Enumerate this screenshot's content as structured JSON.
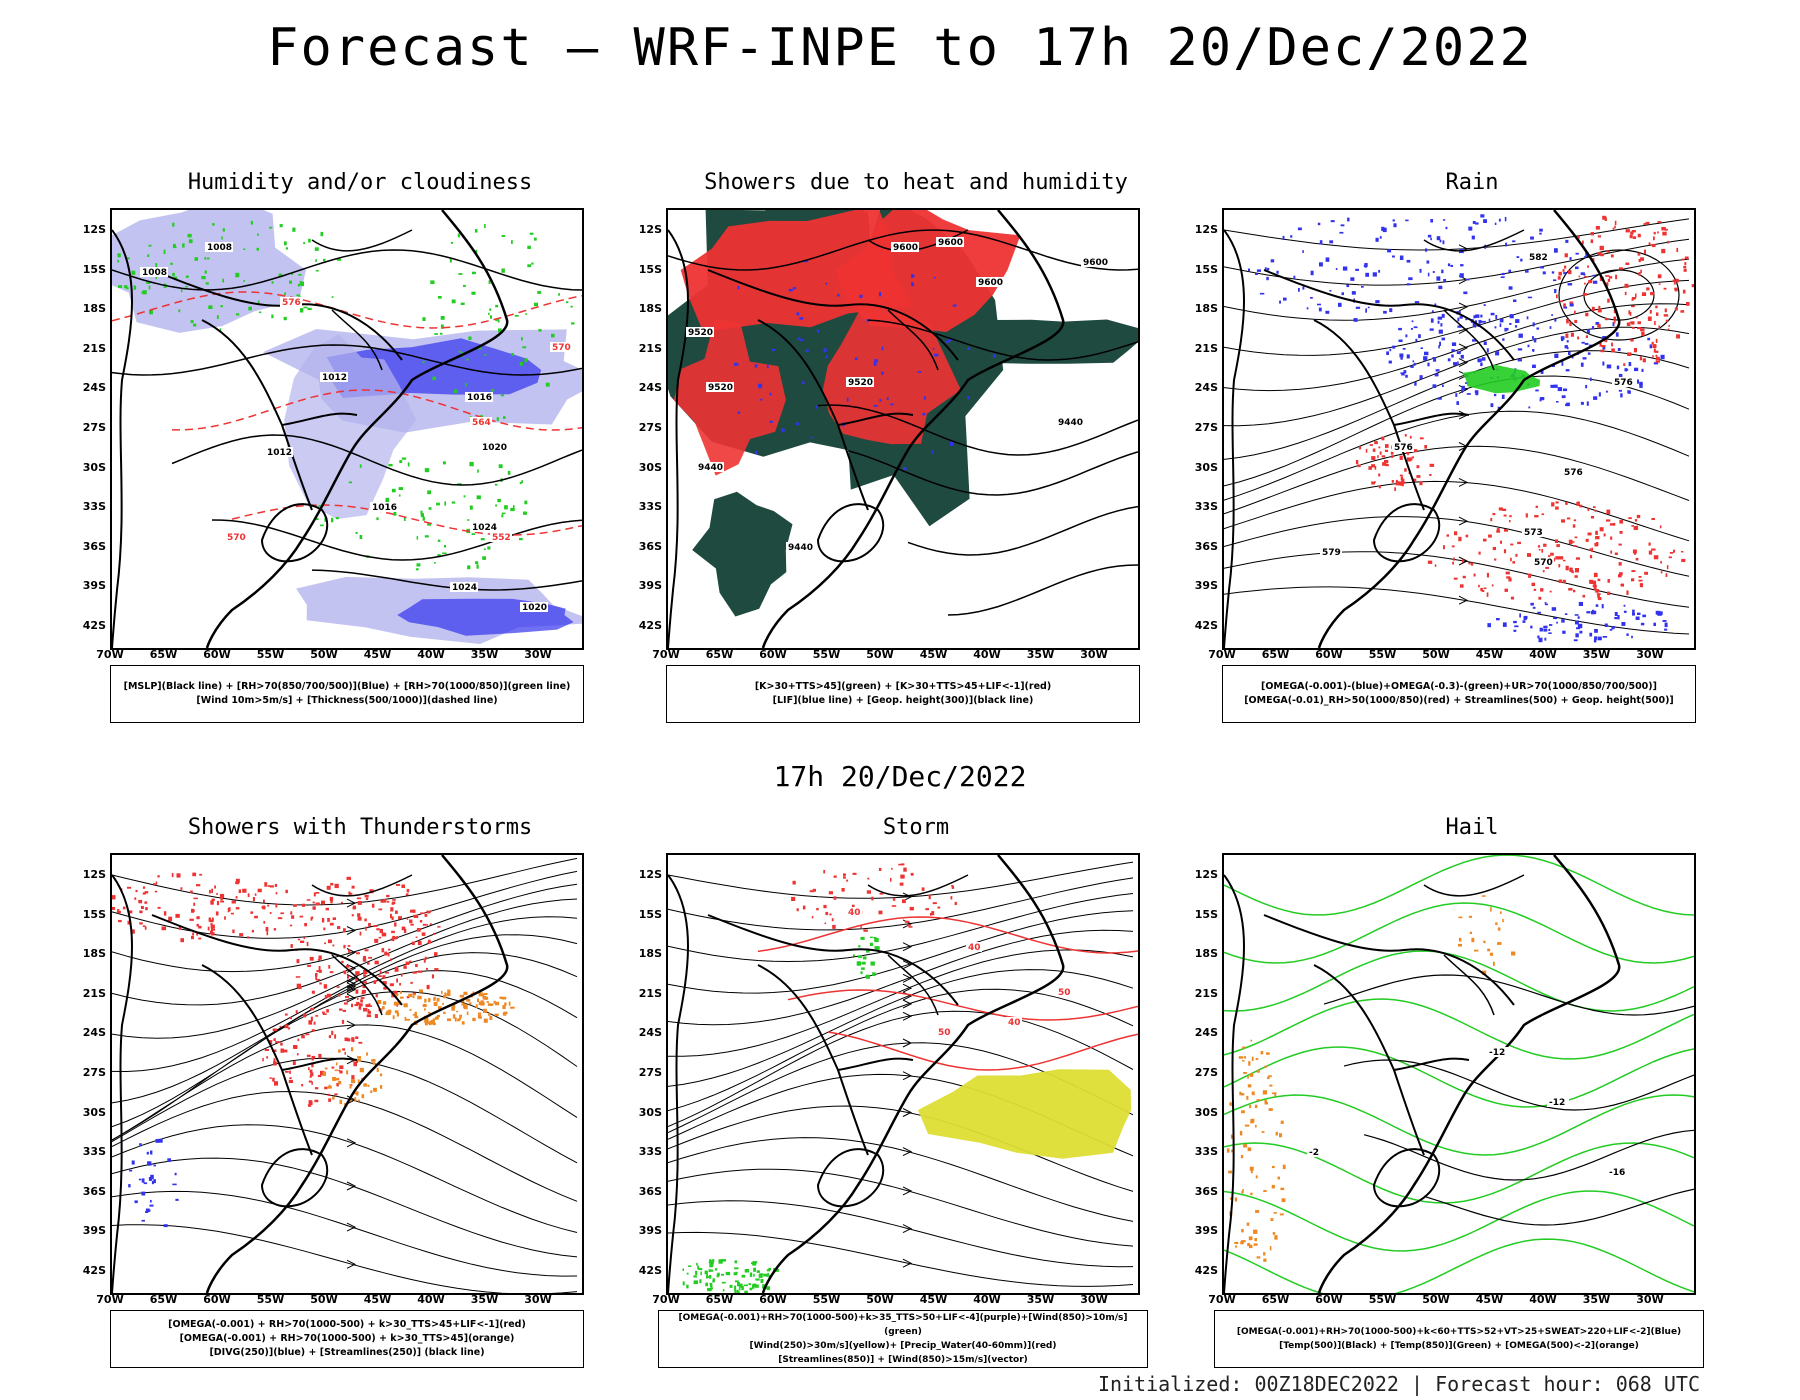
{
  "title": "Forecast — WRF-INPE to 17h 20/Dec/2022",
  "mid_title": "17h 20/Dec/2022",
  "footer": "Initialized: 00Z18DEC2022 | Forecast hour: 068 UTC",
  "lat_labels": [
    "12S",
    "15S",
    "18S",
    "21S",
    "24S",
    "27S",
    "30S",
    "33S",
    "36S",
    "39S",
    "42S"
  ],
  "lon_labels": [
    "70W",
    "65W",
    "60W",
    "55W",
    "50W",
    "45W",
    "40W",
    "35W",
    "30W"
  ],
  "colors": {
    "red": "#ee3333",
    "blue": "#3333ee",
    "green": "#22cc22",
    "dark_teal": "#1f4a40",
    "orange": "#ee8822",
    "yellow": "#dddd33",
    "lavender": "#b4b4ee"
  },
  "panels": [
    {
      "title": "Humidity and/or cloudiness",
      "legend": [
        "[MSLP](Black line) + [RH>70(850/700/500)](Blue) + [RH>70(1000/850)](green line)",
        "[Wind 10m>5m/s] + [Thickness(500/1000)](dashed line)"
      ],
      "contour_labels": [
        "1008",
        "1008",
        "1012",
        "1012",
        "1016",
        "1016",
        "1020",
        "1020",
        "1024",
        "1024",
        "570",
        "576",
        "570",
        "564",
        "552"
      ]
    },
    {
      "title": "Showers due to heat and humidity",
      "legend": [
        "[K>30+TTS>45](green) + [K>30+TTS>45+LIF<-1](red)",
        "[LIF](blue line) + [Geop. height(300)](black line)"
      ],
      "contour_labels": [
        "9600",
        "9600",
        "9600",
        "9600",
        "9520",
        "9520",
        "9520",
        "9440",
        "9440",
        "9440"
      ]
    },
    {
      "title": "Rain",
      "legend": [
        "[OMEGA(-0.001)-(blue)+OMEGA(-0.3)-(green)+UR>70(1000/850/700/500)]",
        "[OMEGA(-0.01)_RH>50(1000/850)(red) + Streamlines(500) + Geop. height(500)]"
      ],
      "contour_labels": [
        "582",
        "576",
        "579",
        "576",
        "573",
        "570",
        "576"
      ]
    },
    {
      "title": "Showers with Thunderstorms",
      "legend": [
        "[OMEGA(-0.001) + RH>70(1000-500) + k>30_TTS>45+LIF<-1](red)",
        "[OMEGA(-0.001) + RH>70(1000-500) + k>30_TTS>45](orange)",
        "[DIVG(250)](blue) + [Streamlines(250)] (black line)"
      ],
      "contour_labels": []
    },
    {
      "title": "Storm",
      "legend": [
        "[OMEGA(-0.001)+RH>70(1000-500)+k>35_TTS>50+LIF<-4](purple)+[Wind(850)>10m/s](green)",
        "[Wind(250)>30m/s](yellow)+ [Precip_Water(40-60mm)](red)",
        "[Streamlines(850)] + [Wind(850)>15m/s](vector)"
      ],
      "contour_labels": [
        "40",
        "50",
        "40",
        "50",
        "40"
      ]
    },
    {
      "title": "Hail",
      "legend": [
        "[OMEGA(-0.001)+RH>70(1000-500)+k<60+TTS>52+VT>25+SWEAT>220+LIF<-2](Blue)",
        "[Temp(500)](Black) + [Temp(850)](Green) + [OMEGA(500)<-2](orange)"
      ],
      "contour_labels": [
        "-12",
        "-12",
        "-16",
        "-2"
      ]
    }
  ]
}
